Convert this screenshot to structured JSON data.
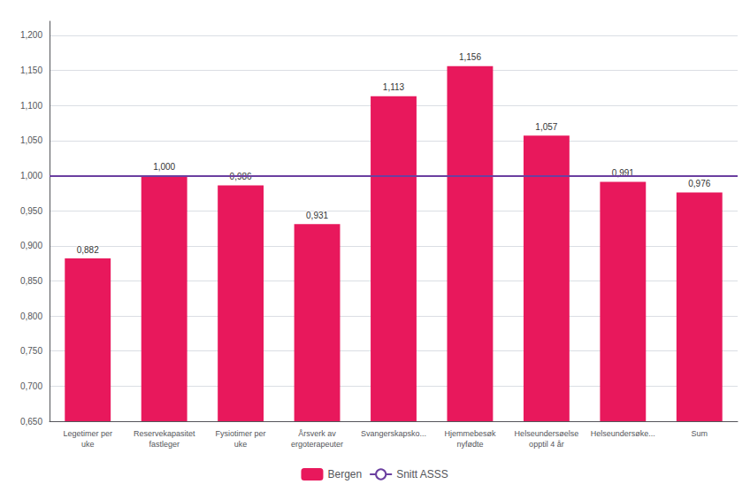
{
  "chart_data": {
    "type": "bar",
    "categories": [
      "Legetimer per\nuke",
      "Reservekapasitet\nfastleger",
      "Fysiotimer per\nuke",
      "Årsverk av\nergoterapeuter",
      "Svangerskapsko...",
      "Hjemmebesøk\nnyfødte",
      "Helseundersøelse\nopptil 4 år",
      "Helseundersøke...",
      "Sum"
    ],
    "series": [
      {
        "name": "Bergen",
        "type": "bar",
        "color": "#E8185C",
        "values": [
          0.882,
          1.0,
          0.986,
          0.931,
          1.113,
          1.156,
          1.057,
          0.991,
          0.976
        ],
        "value_labels": [
          "0,882",
          "1,000",
          "0,986",
          "0,931",
          "1,113",
          "1,156",
          "1,057",
          "0,991",
          "0,976"
        ]
      }
    ],
    "reference_line": {
      "name": "Snitt ASSS",
      "value": 1.0,
      "color": "#6B3FA0"
    },
    "data_labels": true,
    "ylim": [
      0.65,
      1.22
    ],
    "yticks": [
      {
        "value": 0.65,
        "label": "0,650"
      },
      {
        "value": 0.7,
        "label": "0,700"
      },
      {
        "value": 0.75,
        "label": "0,750"
      },
      {
        "value": 0.8,
        "label": "0,800"
      },
      {
        "value": 0.85,
        "label": "0,850"
      },
      {
        "value": 0.9,
        "label": "0,900"
      },
      {
        "value": 0.95,
        "label": "0,950"
      },
      {
        "value": 1.0,
        "label": "1,000"
      },
      {
        "value": 1.05,
        "label": "1,050"
      },
      {
        "value": 1.1,
        "label": "1,100"
      },
      {
        "value": 1.15,
        "label": "1,150"
      },
      {
        "value": 1.2,
        "label": "1,200"
      }
    ],
    "grid": true,
    "legend": "bottom"
  }
}
